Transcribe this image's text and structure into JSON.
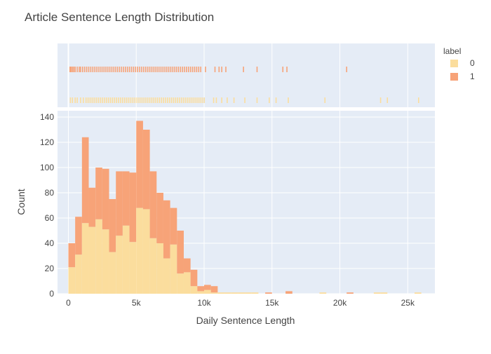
{
  "chart_data": {
    "type": "bar",
    "barmode": "stack",
    "title": "Article Sentence Length Distribution",
    "xlabel": "Daily Sentence Length",
    "ylabel": "Count",
    "bin_width": 500,
    "bin_starts": [
      0,
      500,
      1000,
      1500,
      2000,
      2500,
      3000,
      3500,
      4000,
      4500,
      5000,
      5500,
      6000,
      6500,
      7000,
      7500,
      8000,
      8500,
      9000,
      9500,
      10000,
      10500,
      11000,
      11500,
      12000,
      12500,
      13000,
      13500,
      14000,
      14500,
      15000,
      15500,
      16000,
      18500,
      20500,
      22500,
      23000,
      25500
    ],
    "series": [
      {
        "name": "0",
        "color": "#fbdd9d",
        "values": [
          21,
          31,
          56,
          53,
          59,
          51,
          33,
          46,
          54,
          41,
          68,
          67,
          44,
          40,
          28,
          39,
          16,
          17,
          6,
          2,
          3,
          1,
          1,
          1,
          1,
          1,
          1,
          1,
          0,
          0,
          0,
          0,
          0,
          1,
          0,
          1,
          1,
          1
        ]
      },
      {
        "name": "1",
        "color": "#f7a378",
        "values": [
          19,
          30,
          68,
          31,
          41,
          48,
          42,
          51,
          43,
          55,
          69,
          63,
          53,
          40,
          46,
          29,
          34,
          11,
          13,
          4,
          4,
          5,
          0,
          0,
          0,
          0,
          0,
          0,
          0,
          1,
          0,
          0,
          2,
          0,
          1,
          0,
          0,
          0
        ]
      }
    ],
    "rug": {
      "1": [
        120,
        200,
        300,
        400,
        500,
        650,
        800,
        900,
        1050,
        1200,
        1350,
        1500,
        1650,
        1800,
        1950,
        2100,
        2250,
        2400,
        2550,
        2700,
        2850,
        3000,
        3150,
        3300,
        3450,
        3600,
        3750,
        3900,
        4050,
        4200,
        4350,
        4500,
        4650,
        4800,
        4950,
        5100,
        5250,
        5400,
        5550,
        5700,
        5850,
        6000,
        6150,
        6300,
        6450,
        6600,
        6750,
        6900,
        7050,
        7200,
        7350,
        7500,
        7650,
        7800,
        7950,
        8100,
        8250,
        8400,
        8550,
        8700,
        8850,
        9000,
        9150,
        9300,
        9450,
        9600,
        9750,
        10100,
        10800,
        11100,
        11300,
        11600,
        12900,
        13900,
        15800,
        16100,
        20500
      ],
      "0": [
        150,
        300,
        500,
        650,
        900,
        1100,
        1300,
        1450,
        1600,
        1750,
        1900,
        2050,
        2200,
        2350,
        2500,
        2650,
        2800,
        2950,
        3100,
        3250,
        3400,
        3550,
        3700,
        3850,
        4000,
        4150,
        4300,
        4450,
        4600,
        4750,
        4900,
        5050,
        5200,
        5350,
        5500,
        5650,
        5800,
        5950,
        6100,
        6250,
        6400,
        6550,
        6700,
        6850,
        7000,
        7150,
        7300,
        7450,
        7600,
        7750,
        7900,
        8050,
        8200,
        8350,
        8500,
        8650,
        8800,
        8950,
        9100,
        9250,
        9400,
        9550,
        9700,
        9850,
        10000,
        10700,
        10900,
        11300,
        11700,
        12200,
        13000,
        13900,
        14800,
        15300,
        16200,
        18900,
        23000,
        23500,
        25800
      ]
    },
    "xlim": [
      -800,
      27000
    ],
    "ylim": [
      0,
      145
    ],
    "x_ticks": [
      0,
      5000,
      10000,
      15000,
      20000,
      25000
    ],
    "x_tick_labels": [
      "0",
      "5k",
      "10k",
      "15k",
      "20k",
      "25k"
    ],
    "y_ticks": [
      0,
      20,
      40,
      60,
      80,
      100,
      120,
      140
    ],
    "y_tick_labels": [
      "0",
      "20",
      "40",
      "60",
      "80",
      "100",
      "120",
      "140"
    ],
    "legend": {
      "title": "label",
      "position": "right",
      "entries": [
        "0",
        "1"
      ]
    },
    "grid": true,
    "plot_bg": "#e5ecf6"
  }
}
